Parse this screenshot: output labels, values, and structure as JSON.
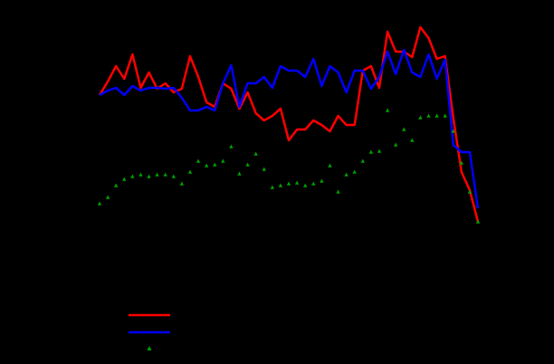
{
  "chart_data": {
    "type": "line",
    "x": [
      0,
      1,
      2,
      3,
      4,
      5,
      6,
      7,
      8,
      9,
      10,
      11,
      12,
      13,
      14,
      15,
      16,
      17,
      18,
      19,
      20,
      21,
      22,
      23,
      24,
      25,
      26,
      27,
      28,
      29,
      30,
      31,
      32,
      33,
      34,
      35,
      36,
      37,
      38,
      39,
      40,
      41,
      42,
      43,
      44,
      45,
      46
    ],
    "xlim": [
      0,
      46
    ],
    "ylim": [
      0,
      240
    ],
    "series": [
      {
        "color": "#ff0000",
        "marker": "none",
        "values": [
          155,
          170,
          187,
          173,
          200,
          163,
          180,
          162,
          168,
          158,
          162,
          198,
          175,
          147,
          142,
          168,
          162,
          140,
          158,
          135,
          127,
          132,
          140,
          105,
          117,
          117,
          127,
          122,
          115,
          132,
          122,
          122,
          182,
          187,
          163,
          225,
          203,
          203,
          197,
          230,
          218,
          195,
          198,
          130,
          70,
          50,
          15
        ]
      },
      {
        "color": "#0000ff",
        "marker": "none",
        "values": [
          155,
          160,
          163,
          155,
          165,
          160,
          163,
          163,
          162,
          163,
          152,
          138,
          138,
          142,
          138,
          168,
          188,
          142,
          168,
          168,
          175,
          163,
          187,
          182,
          182,
          175,
          195,
          165,
          187,
          180,
          158,
          182,
          182,
          162,
          175,
          203,
          178,
          205,
          180,
          175,
          200,
          173,
          194,
          100,
          92,
          92,
          30
        ]
      },
      {
        "color": "#00a000",
        "marker": "triangle",
        "values": [
          35,
          42,
          55,
          62,
          65,
          67,
          65,
          67,
          67,
          65,
          57,
          70,
          82,
          77,
          78,
          82,
          98,
          68,
          78,
          90,
          73,
          53,
          55,
          57,
          58,
          55,
          57,
          60,
          77,
          48,
          67,
          70,
          82,
          92,
          93,
          138,
          100,
          117,
          105,
          130,
          132,
          132,
          132,
          115,
          80,
          48,
          15
        ]
      }
    ]
  }
}
